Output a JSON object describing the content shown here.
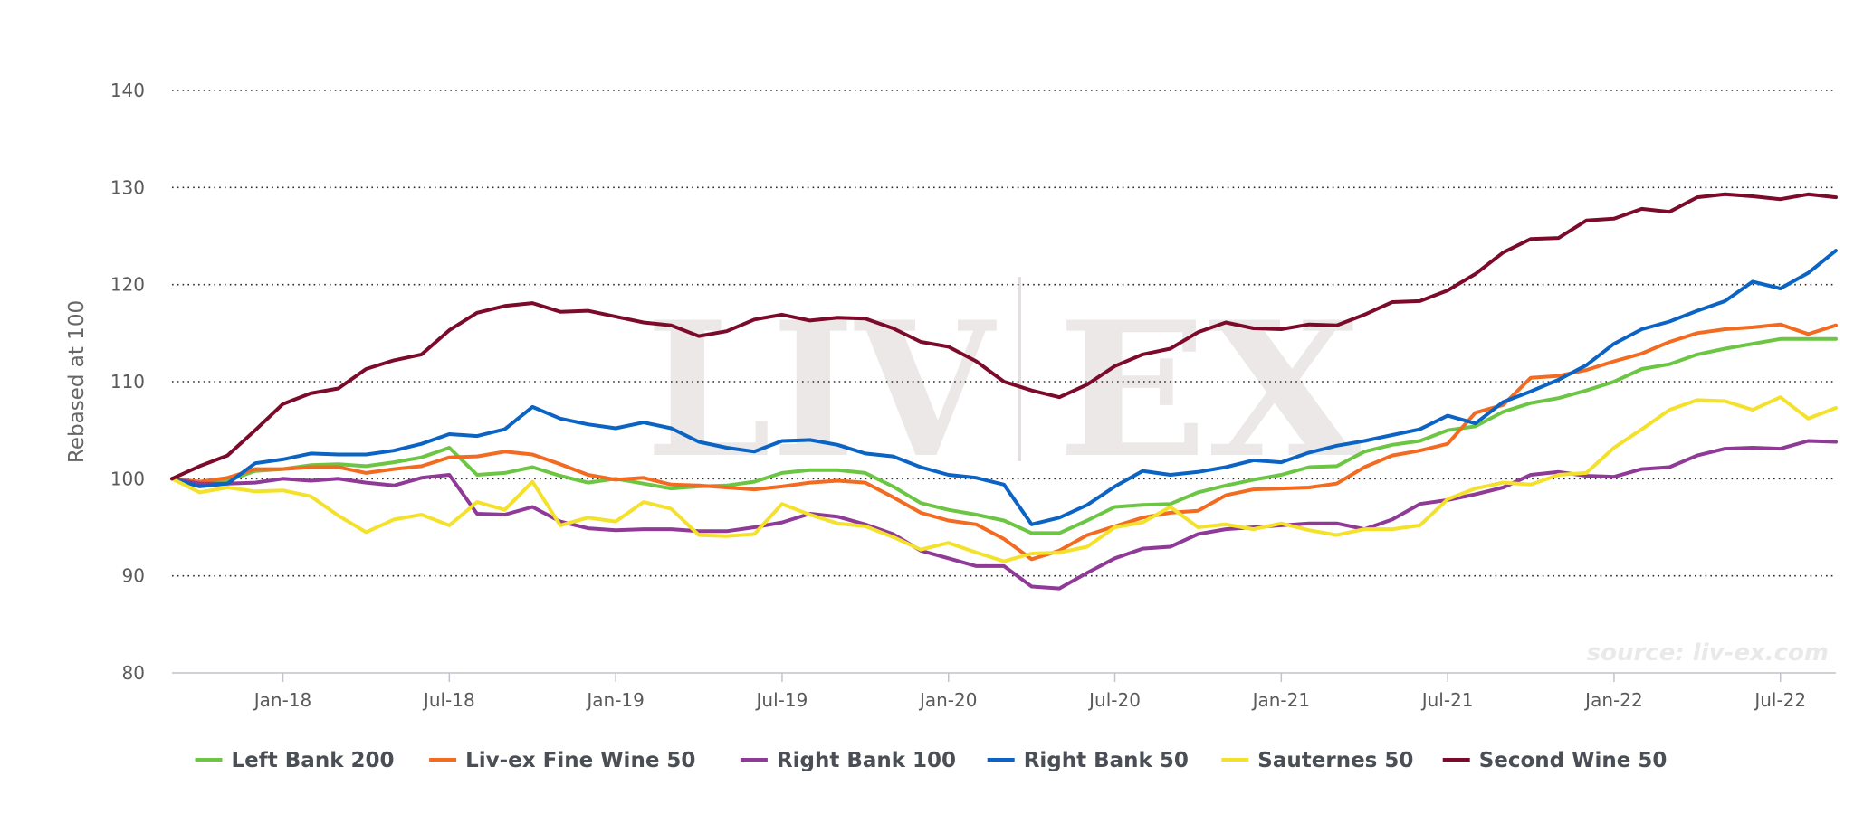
{
  "chart_data": {
    "type": "line",
    "ylabel": "Rebased at 100",
    "ylim": [
      80,
      140
    ],
    "yticks": [
      80,
      90,
      100,
      110,
      120,
      130,
      140
    ],
    "xtick_labels": [
      "Jan-18",
      "Jul-18",
      "Jan-19",
      "Jul-19",
      "Jan-20",
      "Jul-20",
      "Jan-21",
      "Jul-21",
      "Jan-22",
      "Jul-22"
    ],
    "x_start": "Sep-17",
    "x_end": "Sep-22",
    "grid": "horizontal dotted",
    "legend_position": "bottom",
    "watermark": {
      "left": "LIV",
      "right": "EX"
    },
    "source": "source: liv-ex.com",
    "series": [
      {
        "name": "Left Bank 200",
        "color": "#6cc644",
        "values": [
          100,
          99.5,
          99.8,
          100.8,
          101.0,
          101.4,
          101.5,
          101.3,
          101.7,
          102.2,
          103.2,
          100.4,
          100.6,
          101.2,
          100.3,
          99.6,
          100.0,
          99.5,
          99.0,
          99.2,
          99.3,
          99.7,
          100.6,
          100.9,
          100.9,
          100.6,
          99.2,
          97.5,
          96.8,
          96.3,
          95.7,
          94.4,
          94.4,
          95.7,
          97.1,
          97.3,
          97.4,
          98.6,
          99.3,
          99.9,
          100.4,
          101.2,
          101.3,
          102.8,
          103.5,
          103.9,
          105.0,
          105.4,
          106.9,
          107.8,
          108.3,
          109.1,
          110.0,
          111.3,
          111.8,
          112.8,
          113.4,
          113.9,
          114.4,
          114.4,
          114.4
        ]
      },
      {
        "name": "Liv-ex Fine Wine 50",
        "color": "#f26b21",
        "values": [
          100,
          99.7,
          100.1,
          101.0,
          101.0,
          101.2,
          101.2,
          100.6,
          101.0,
          101.3,
          102.2,
          102.3,
          102.8,
          102.5,
          101.5,
          100.4,
          99.9,
          100.1,
          99.4,
          99.3,
          99.1,
          98.9,
          99.2,
          99.6,
          99.8,
          99.6,
          98.1,
          96.5,
          95.7,
          95.3,
          93.8,
          91.7,
          92.6,
          94.2,
          95.1,
          96.0,
          96.5,
          96.7,
          98.3,
          98.9,
          99.0,
          99.1,
          99.5,
          101.2,
          102.4,
          102.9,
          103.6,
          106.8,
          107.6,
          110.4,
          110.6,
          111.2,
          112.1,
          112.9,
          114.1,
          115.0,
          115.4,
          115.6,
          115.9,
          114.9,
          115.8
        ]
      },
      {
        "name": "Right Bank 100",
        "color": "#8e3a96",
        "values": [
          100,
          99.5,
          99.5,
          99.6,
          100.0,
          99.8,
          100.0,
          99.6,
          99.3,
          100.1,
          100.4,
          96.4,
          96.3,
          97.1,
          95.6,
          94.9,
          94.7,
          94.8,
          94.8,
          94.6,
          94.6,
          95.0,
          95.5,
          96.4,
          96.1,
          95.3,
          94.3,
          92.6,
          91.8,
          91.0,
          91.0,
          88.9,
          88.7,
          90.3,
          91.8,
          92.8,
          93.0,
          94.3,
          94.8,
          95.0,
          95.2,
          95.4,
          95.4,
          94.8,
          95.8,
          97.4,
          97.8,
          98.4,
          99.1,
          100.4,
          100.7,
          100.3,
          100.2,
          101.0,
          101.2,
          102.4,
          103.1,
          103.2,
          103.1,
          103.9,
          103.8
        ]
      },
      {
        "name": "Right Bank 50",
        "color": "#0b63c4",
        "values": [
          100,
          99.2,
          99.5,
          101.6,
          102.0,
          102.6,
          102.5,
          102.5,
          102.9,
          103.6,
          104.6,
          104.4,
          105.1,
          107.4,
          106.2,
          105.6,
          105.2,
          105.8,
          105.2,
          103.8,
          103.2,
          102.8,
          103.9,
          104.0,
          103.5,
          102.6,
          102.3,
          101.2,
          100.4,
          100.1,
          99.4,
          95.3,
          96.0,
          97.3,
          99.2,
          100.8,
          100.4,
          100.7,
          101.2,
          101.9,
          101.7,
          102.7,
          103.4,
          103.9,
          104.5,
          105.1,
          106.5,
          105.7,
          107.9,
          109.0,
          110.2,
          111.7,
          113.9,
          115.4,
          116.2,
          117.3,
          118.3,
          120.3,
          119.6,
          121.2,
          123.5
        ]
      },
      {
        "name": "Sauternes 50",
        "color": "#f4e12b",
        "values": [
          100,
          98.6,
          99.1,
          98.7,
          98.8,
          98.2,
          96.2,
          94.5,
          95.8,
          96.3,
          95.2,
          97.6,
          96.8,
          99.7,
          95.2,
          96.0,
          95.6,
          97.6,
          96.9,
          94.2,
          94.1,
          94.3,
          97.4,
          96.3,
          95.4,
          95.1,
          94.0,
          92.7,
          93.4,
          92.4,
          91.5,
          92.3,
          92.4,
          93.0,
          95.0,
          95.5,
          97.1,
          95.0,
          95.3,
          94.8,
          95.4,
          94.7,
          94.2,
          94.8,
          94.8,
          95.2,
          97.9,
          99.0,
          99.6,
          99.4,
          100.4,
          100.6,
          103.2,
          105.1,
          107.1,
          108.1,
          108.0,
          107.1,
          108.4,
          106.2,
          107.3
        ]
      },
      {
        "name": "Second Wine 50",
        "color": "#7c0a2b",
        "values": [
          100,
          101.3,
          102.4,
          105.0,
          107.7,
          108.8,
          109.3,
          111.3,
          112.2,
          112.8,
          115.3,
          117.1,
          117.8,
          118.1,
          117.2,
          117.3,
          116.7,
          116.1,
          115.8,
          114.7,
          115.2,
          116.4,
          116.9,
          116.3,
          116.6,
          116.5,
          115.5,
          114.1,
          113.6,
          112.1,
          110.0,
          109.1,
          108.4,
          109.7,
          111.6,
          112.8,
          113.4,
          115.1,
          116.1,
          115.5,
          115.4,
          115.9,
          115.8,
          116.9,
          118.2,
          118.3,
          119.4,
          121.1,
          123.3,
          124.7,
          124.8,
          126.6,
          126.8,
          127.8,
          127.5,
          129.0,
          129.3,
          129.1,
          128.8,
          129.3,
          129.0
        ]
      }
    ]
  }
}
